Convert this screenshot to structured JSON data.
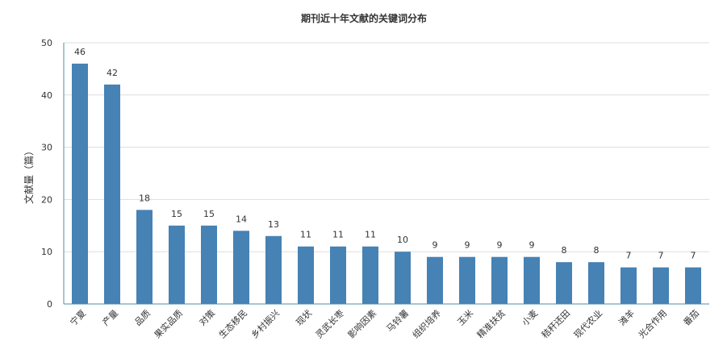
{
  "chart_data": {
    "type": "bar",
    "title": "期刊近十年文献的关键词分布",
    "xlabel": "",
    "ylabel": "文献量（篇）",
    "ylim": [
      0,
      50
    ],
    "yticks": [
      0,
      10,
      20,
      30,
      40,
      50
    ],
    "grid": true,
    "legend": "none",
    "categories": [
      "宁夏",
      "产量",
      "品质",
      "果实品质",
      "对策",
      "生态移民",
      "乡村振兴",
      "现状",
      "灵武长枣",
      "影响因素",
      "马铃薯",
      "组织培养",
      "玉米",
      "精准扶贫",
      "小麦",
      "秸秆还田",
      "现代农业",
      "滩羊",
      "光合作用",
      "番茄"
    ],
    "values": [
      46,
      42,
      18,
      15,
      15,
      14,
      13,
      11,
      11,
      11,
      10,
      9,
      9,
      9,
      9,
      8,
      8,
      7,
      7,
      7
    ],
    "colors": {
      "bar": "#4682b4",
      "grid": "#dddddd",
      "axis": "#4b8fa6",
      "text": "#333333"
    }
  }
}
